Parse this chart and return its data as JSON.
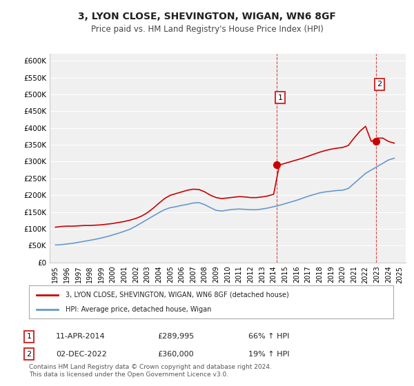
{
  "title": "3, LYON CLOSE, SHEVINGTON, WIGAN, WN6 8GF",
  "subtitle": "Price paid vs. HM Land Registry's House Price Index (HPI)",
  "ylabel": "",
  "xlabel": "",
  "ylim": [
    0,
    620000
  ],
  "yticks": [
    0,
    50000,
    100000,
    150000,
    200000,
    250000,
    300000,
    350000,
    400000,
    450000,
    500000,
    550000,
    600000
  ],
  "ytick_labels": [
    "£0",
    "£50K",
    "£100K",
    "£150K",
    "£200K",
    "£250K",
    "£300K",
    "£350K",
    "£400K",
    "£450K",
    "£500K",
    "£550K",
    "£600K"
  ],
  "hpi_color": "#6699cc",
  "house_color": "#cc0000",
  "sale1_year": 2014.28,
  "sale1_price": 289995,
  "sale2_year": 2022.92,
  "sale2_price": 360000,
  "legend_house": "3, LYON CLOSE, SHEVINGTON, WIGAN, WN6 8GF (detached house)",
  "legend_hpi": "HPI: Average price, detached house, Wigan",
  "table_row1": [
    "1",
    "11-APR-2014",
    "£289,995",
    "66% ↑ HPI"
  ],
  "table_row2": [
    "2",
    "02-DEC-2022",
    "£360,000",
    "19% ↑ HPI"
  ],
  "footer": "Contains HM Land Registry data © Crown copyright and database right 2024.\nThis data is licensed under the Open Government Licence v3.0.",
  "bg_color": "#ffffff",
  "plot_bg_color": "#f0f0f0",
  "hpi_x": [
    1995,
    1995.5,
    1996,
    1996.5,
    1997,
    1997.5,
    1998,
    1998.5,
    1999,
    1999.5,
    2000,
    2000.5,
    2001,
    2001.5,
    2002,
    2002.5,
    2003,
    2003.5,
    2004,
    2004.5,
    2005,
    2005.5,
    2006,
    2006.5,
    2007,
    2007.5,
    2008,
    2008.5,
    2009,
    2009.5,
    2010,
    2010.5,
    2011,
    2011.5,
    2012,
    2012.5,
    2013,
    2013.5,
    2014,
    2014.5,
    2015,
    2015.5,
    2016,
    2016.5,
    2017,
    2017.5,
    2018,
    2018.5,
    2019,
    2019.5,
    2020,
    2020.5,
    2021,
    2021.5,
    2022,
    2022.5,
    2023,
    2023.5,
    2024,
    2024.5
  ],
  "hpi_y": [
    52000,
    53000,
    55000,
    57000,
    60000,
    63000,
    66000,
    69000,
    73000,
    77000,
    82000,
    87000,
    93000,
    99000,
    108000,
    118000,
    128000,
    138000,
    148000,
    157000,
    163000,
    166000,
    170000,
    173000,
    177000,
    178000,
    172000,
    163000,
    155000,
    153000,
    156000,
    158000,
    159000,
    158000,
    157000,
    157000,
    159000,
    162000,
    166000,
    170000,
    175000,
    180000,
    185000,
    191000,
    197000,
    202000,
    207000,
    210000,
    212000,
    214000,
    215000,
    220000,
    235000,
    250000,
    265000,
    275000,
    285000,
    295000,
    305000,
    310000
  ],
  "house_x": [
    1995,
    1995.5,
    1996,
    1996.5,
    1997,
    1997.5,
    1998,
    1998.5,
    1999,
    1999.5,
    2000,
    2000.5,
    2001,
    2001.5,
    2002,
    2002.5,
    2003,
    2003.5,
    2004,
    2004.5,
    2005,
    2005.5,
    2006,
    2006.5,
    2007,
    2007.5,
    2008,
    2008.5,
    2009,
    2009.5,
    2010,
    2010.5,
    2011,
    2011.5,
    2012,
    2012.5,
    2013,
    2013.5,
    2014,
    2014.5,
    2015,
    2015.5,
    2016,
    2016.5,
    2017,
    2017.5,
    2018,
    2018.5,
    2019,
    2019.5,
    2020,
    2020.5,
    2021,
    2021.5,
    2022,
    2022.5,
    2023,
    2023.5,
    2024,
    2024.5
  ],
  "house_y": [
    105000,
    107000,
    108000,
    108000,
    109000,
    110000,
    110000,
    111000,
    112000,
    114000,
    116000,
    119000,
    122000,
    126000,
    131000,
    138000,
    148000,
    161000,
    176000,
    190000,
    200000,
    205000,
    210000,
    215000,
    218000,
    217000,
    210000,
    200000,
    193000,
    190000,
    192000,
    194000,
    196000,
    195000,
    193000,
    193000,
    195000,
    198000,
    203000,
    290000,
    295000,
    300000,
    305000,
    310000,
    316000,
    322000,
    328000,
    333000,
    337000,
    340000,
    342000,
    348000,
    370000,
    390000,
    405000,
    360000,
    370000,
    370000,
    360000,
    355000
  ],
  "xlim": [
    1994.5,
    2025.5
  ],
  "xticks": [
    1995,
    1996,
    1997,
    1998,
    1999,
    2000,
    2001,
    2002,
    2003,
    2004,
    2005,
    2006,
    2007,
    2008,
    2009,
    2010,
    2011,
    2012,
    2013,
    2014,
    2015,
    2016,
    2017,
    2018,
    2019,
    2020,
    2021,
    2022,
    2023,
    2024,
    2025
  ]
}
